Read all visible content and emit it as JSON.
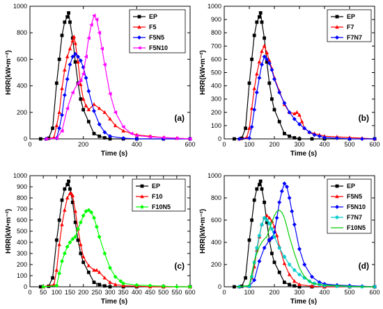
{
  "chart_data": [
    {
      "type": "line",
      "panel_label": "(a)",
      "xlabel": "Time (s)",
      "ylabel": "HRR(kW•m⁻²)",
      "xlim": [
        0,
        600
      ],
      "ylim": [
        0,
        1000
      ],
      "xticks": [
        0,
        200,
        400,
        600
      ],
      "yticks": [
        0,
        200,
        400,
        600,
        800,
        1000
      ],
      "legend_position": "top-right",
      "series": [
        {
          "name": "EP",
          "color": "#000000",
          "marker": "square",
          "x": [
            40,
            70,
            85,
            100,
            110,
            120,
            130,
            140,
            145,
            150,
            160,
            170,
            180,
            190,
            200,
            220,
            240,
            260,
            280,
            300,
            350,
            400,
            500,
            600
          ],
          "y": [
            0,
            5,
            80,
            420,
            600,
            780,
            880,
            920,
            950,
            880,
            760,
            580,
            420,
            300,
            220,
            130,
            40,
            20,
            8,
            0,
            0,
            0,
            0,
            0
          ]
        },
        {
          "name": "F5",
          "color": "#ff0000",
          "marker": "triangle",
          "x": [
            60,
            90,
            100,
            110,
            120,
            130,
            140,
            150,
            160,
            165,
            170,
            180,
            190,
            200,
            210,
            220,
            240,
            260,
            280,
            300,
            320,
            350,
            400,
            450,
            500,
            550,
            600
          ],
          "y": [
            0,
            10,
            100,
            200,
            380,
            520,
            620,
            680,
            740,
            770,
            720,
            580,
            410,
            300,
            250,
            220,
            260,
            230,
            200,
            150,
            100,
            60,
            30,
            20,
            10,
            5,
            0
          ]
        },
        {
          "name": "F5N5",
          "color": "#0000ff",
          "marker": "diamond",
          "x": [
            60,
            100,
            110,
            120,
            130,
            140,
            150,
            160,
            170,
            180,
            190,
            200,
            210,
            220,
            240,
            260,
            280,
            300,
            350,
            400,
            500,
            600
          ],
          "y": [
            0,
            5,
            80,
            180,
            330,
            450,
            560,
            620,
            640,
            620,
            590,
            540,
            460,
            360,
            210,
            110,
            50,
            20,
            5,
            0,
            0,
            0
          ]
        },
        {
          "name": "F5N10",
          "color": "#ff00ff",
          "marker": "tri-left",
          "x": [
            60,
            100,
            120,
            140,
            160,
            180,
            190,
            200,
            210,
            220,
            230,
            240,
            250,
            260,
            270,
            280,
            300,
            320,
            350,
            380,
            400,
            450,
            500,
            550,
            600
          ],
          "y": [
            0,
            5,
            60,
            230,
            350,
            420,
            440,
            490,
            620,
            760,
            860,
            930,
            900,
            800,
            680,
            560,
            340,
            200,
            90,
            40,
            25,
            15,
            10,
            5,
            0
          ]
        }
      ]
    },
    {
      "type": "line",
      "panel_label": "(b)",
      "xlabel": "Time (s)",
      "ylabel": "HRR(kW•m⁻²)",
      "xlim": [
        0,
        600
      ],
      "ylim": [
        0,
        1000
      ],
      "xticks": [
        0,
        100,
        200,
        300,
        400,
        500,
        600
      ],
      "yticks": [
        0,
        100,
        200,
        300,
        400,
        500,
        600,
        700,
        800,
        900,
        1000
      ],
      "legend_position": "top-right",
      "series": [
        {
          "name": "EP",
          "color": "#000000",
          "marker": "square",
          "x": [
            40,
            70,
            85,
            100,
            110,
            120,
            130,
            140,
            145,
            150,
            160,
            170,
            180,
            190,
            200,
            220,
            240,
            260,
            280,
            300,
            350,
            400,
            500,
            600
          ],
          "y": [
            0,
            5,
            80,
            420,
            600,
            780,
            880,
            920,
            950,
            880,
            760,
            580,
            420,
            300,
            220,
            130,
            40,
            20,
            8,
            0,
            0,
            0,
            0,
            0
          ]
        },
        {
          "name": "F7",
          "color": "#ff0000",
          "marker": "triangle",
          "x": [
            60,
            90,
            100,
            110,
            120,
            130,
            140,
            150,
            160,
            170,
            180,
            190,
            200,
            220,
            240,
            260,
            280,
            290,
            300,
            310,
            320,
            340,
            360,
            380,
            400,
            450,
            500,
            550,
            600
          ],
          "y": [
            0,
            10,
            80,
            230,
            380,
            490,
            580,
            660,
            700,
            650,
            590,
            530,
            460,
            360,
            260,
            200,
            190,
            200,
            180,
            130,
            80,
            50,
            40,
            30,
            20,
            15,
            10,
            5,
            0
          ]
        },
        {
          "name": "F7N7",
          "color": "#0000ff",
          "marker": "diamond",
          "x": [
            60,
            100,
            110,
            120,
            130,
            140,
            150,
            160,
            170,
            180,
            190,
            200,
            220,
            240,
            260,
            280,
            300,
            320,
            340,
            360,
            380,
            400,
            450,
            500,
            550,
            600
          ],
          "y": [
            0,
            5,
            90,
            220,
            350,
            460,
            560,
            620,
            600,
            570,
            520,
            450,
            350,
            270,
            200,
            150,
            110,
            80,
            50,
            30,
            20,
            10,
            5,
            0,
            0,
            0
          ]
        }
      ]
    },
    {
      "type": "line",
      "panel_label": "(c)",
      "xlabel": "Time (s)",
      "ylabel": "HRR(kW•m⁻²)",
      "xlim": [
        0,
        600
      ],
      "ylim": [
        0,
        1000
      ],
      "xticks": [
        0,
        50,
        100,
        150,
        200,
        250,
        300,
        350,
        400,
        450,
        500,
        550,
        600
      ],
      "yticks": [
        0,
        100,
        200,
        300,
        400,
        500,
        600,
        700,
        800,
        900,
        1000
      ],
      "legend_position": "top-right",
      "series": [
        {
          "name": "EP",
          "color": "#000000",
          "marker": "square",
          "x": [
            40,
            70,
            85,
            100,
            110,
            120,
            130,
            140,
            145,
            150,
            160,
            170,
            180,
            190,
            200,
            220,
            240,
            260,
            280,
            300,
            350,
            400,
            500,
            600
          ],
          "y": [
            0,
            5,
            80,
            420,
            600,
            780,
            880,
            920,
            950,
            880,
            760,
            580,
            420,
            300,
            220,
            130,
            40,
            20,
            8,
            0,
            0,
            0,
            0,
            0
          ]
        },
        {
          "name": "F10",
          "color": "#ff0000",
          "marker": "triangle",
          "x": [
            50,
            90,
            100,
            110,
            120,
            130,
            140,
            150,
            155,
            160,
            170,
            180,
            190,
            200,
            220,
            240,
            250,
            260,
            280,
            300,
            320,
            350,
            400,
            450,
            500,
            600
          ],
          "y": [
            0,
            20,
            150,
            380,
            560,
            690,
            800,
            840,
            840,
            820,
            680,
            520,
            380,
            270,
            190,
            150,
            150,
            130,
            80,
            40,
            20,
            10,
            5,
            0,
            0,
            0
          ]
        },
        {
          "name": "F10N5",
          "color": "#00ff00",
          "marker": "diamond",
          "x": [
            50,
            100,
            110,
            120,
            130,
            140,
            150,
            160,
            170,
            180,
            190,
            200,
            210,
            220,
            230,
            240,
            250,
            260,
            280,
            300,
            320,
            340,
            350,
            400,
            450,
            500,
            550,
            600
          ],
          "y": [
            0,
            10,
            120,
            230,
            300,
            360,
            400,
            430,
            450,
            520,
            580,
            640,
            680,
            690,
            670,
            620,
            540,
            450,
            300,
            170,
            90,
            50,
            30,
            15,
            10,
            5,
            0,
            0
          ]
        }
      ]
    },
    {
      "type": "line",
      "panel_label": "(d)",
      "xlabel": "Time (s)",
      "ylabel": "HRR(kW•m⁻²)",
      "xlim": [
        0,
        600
      ],
      "ylim": [
        0,
        1000
      ],
      "xticks": [
        0,
        100,
        200,
        300,
        400,
        500,
        600
      ],
      "yticks": [
        0,
        200,
        400,
        600,
        800,
        1000
      ],
      "legend_position": "top-right",
      "series": [
        {
          "name": "EP",
          "color": "#000000",
          "marker": "square",
          "x": [
            40,
            70,
            85,
            100,
            110,
            120,
            130,
            140,
            145,
            150,
            160,
            170,
            180,
            190,
            200,
            220,
            240,
            260,
            280,
            300,
            350,
            400,
            500,
            600
          ],
          "y": [
            0,
            5,
            80,
            420,
            600,
            780,
            880,
            920,
            950,
            880,
            760,
            580,
            420,
            300,
            220,
            130,
            40,
            20,
            8,
            0,
            0,
            0,
            0,
            0
          ]
        },
        {
          "name": "F5N5",
          "color": "#ff0000",
          "marker": "triangle",
          "x": [
            60,
            100,
            110,
            120,
            130,
            140,
            150,
            160,
            170,
            180,
            190,
            200,
            210,
            220,
            240,
            260,
            280,
            300,
            350,
            400,
            500,
            600
          ],
          "y": [
            0,
            5,
            80,
            180,
            330,
            450,
            560,
            620,
            640,
            620,
            590,
            540,
            460,
            360,
            210,
            110,
            50,
            20,
            5,
            0,
            0,
            0
          ]
        },
        {
          "name": "F5N10",
          "color": "#0000ff",
          "marker": "diamond",
          "x": [
            60,
            100,
            120,
            140,
            160,
            180,
            190,
            200,
            210,
            220,
            230,
            240,
            250,
            260,
            270,
            280,
            300,
            320,
            350,
            380,
            400,
            450,
            500,
            550,
            600
          ],
          "y": [
            0,
            5,
            60,
            230,
            350,
            420,
            440,
            490,
            620,
            760,
            860,
            930,
            900,
            800,
            680,
            560,
            340,
            200,
            90,
            40,
            25,
            15,
            10,
            5,
            0
          ]
        },
        {
          "name": "F7N7",
          "color": "#00cccc",
          "marker": "star",
          "x": [
            60,
            100,
            110,
            120,
            130,
            140,
            150,
            160,
            170,
            180,
            190,
            200,
            220,
            240,
            260,
            280,
            300,
            320,
            340,
            360,
            380,
            400,
            450,
            500,
            550,
            600
          ],
          "y": [
            0,
            5,
            90,
            220,
            350,
            460,
            560,
            620,
            600,
            570,
            520,
            450,
            350,
            270,
            200,
            150,
            110,
            80,
            50,
            30,
            20,
            10,
            5,
            0,
            0,
            0
          ]
        },
        {
          "name": "F10N5",
          "color": "#00cc00",
          "marker": "none",
          "x": [
            50,
            100,
            110,
            120,
            130,
            140,
            150,
            160,
            170,
            180,
            190,
            200,
            210,
            220,
            230,
            240,
            250,
            260,
            280,
            300,
            320,
            340,
            350,
            400,
            450,
            500,
            550,
            600
          ],
          "y": [
            0,
            10,
            120,
            230,
            300,
            360,
            400,
            430,
            450,
            520,
            580,
            640,
            680,
            690,
            670,
            620,
            540,
            450,
            300,
            170,
            90,
            50,
            30,
            15,
            10,
            5,
            0,
            0
          ]
        }
      ]
    }
  ]
}
